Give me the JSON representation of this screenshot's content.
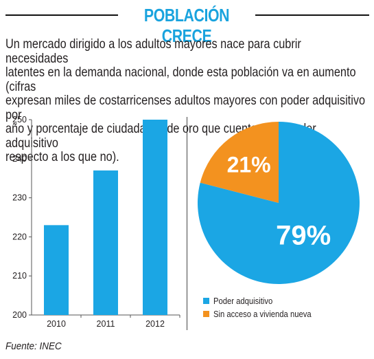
{
  "title": "POBLACIÓN CRECE",
  "description_lines": [
    "Un mercado dirigido a los adultos mayores nace para cubrir necesidades",
    "latentes en la demanda nacional, donde esta población va en aumento (cifras",
    "expresan miles de costarricenses adultos mayores con poder adquisitivo por",
    "año y porcentaje de ciudadanos de oro que cuentan con poder adquisitivo",
    "respecto a los que no)."
  ],
  "source": "Fuente: INEC",
  "colors": {
    "accent": "#19a3de",
    "blue": "#1ba6e4",
    "orange": "#f3921f"
  },
  "chart_data": [
    {
      "type": "bar",
      "categories": [
        "2010",
        "2011",
        "2012"
      ],
      "values": [
        223,
        237,
        250
      ],
      "yticks": [
        200,
        210,
        220,
        230,
        240,
        250
      ],
      "ylim": [
        200,
        250
      ],
      "grid": false,
      "color": "#1ba6e4"
    },
    {
      "type": "pie",
      "slices": [
        {
          "label": "Poder adquisitivo",
          "value": 79,
          "display": "79%",
          "color": "#1ba6e4"
        },
        {
          "label": "Sin acceso a vivienda nueva",
          "value": 21,
          "display": "21%",
          "color": "#f3921f"
        }
      ],
      "legend_placement": "bottom-left"
    }
  ]
}
